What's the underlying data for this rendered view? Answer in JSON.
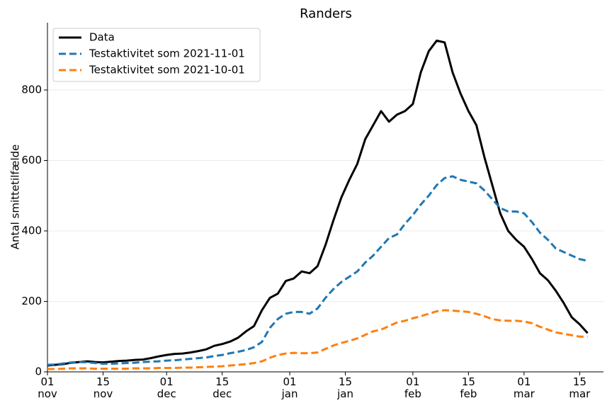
{
  "chart_data": {
    "type": "line",
    "title": "Randers",
    "y_label": "Antal smittetilfælde",
    "x": [
      0,
      2,
      4,
      6,
      8,
      10,
      12,
      14,
      16,
      18,
      20,
      22,
      24,
      26,
      28,
      30,
      32,
      34,
      36,
      38,
      40,
      42,
      44,
      46,
      48,
      50,
      52,
      54,
      56,
      58,
      60,
      62,
      64,
      66,
      68,
      70,
      72,
      74,
      76,
      78,
      80,
      82,
      84,
      86,
      88,
      90,
      92,
      94,
      96,
      98,
      100,
      102,
      104,
      106,
      108,
      110,
      112,
      114,
      116,
      118,
      120,
      122,
      124,
      126,
      128,
      130,
      132,
      134,
      136
    ],
    "series": [
      {
        "name": "Data",
        "color": "#000000",
        "linestyle": "solid",
        "values": [
          18,
          20,
          22,
          26,
          28,
          30,
          28,
          27,
          29,
          31,
          32,
          34,
          35,
          39,
          44,
          48,
          51,
          52,
          55,
          59,
          64,
          74,
          79,
          86,
          97,
          115,
          130,
          175,
          210,
          222,
          258,
          265,
          285,
          280,
          300,
          360,
          430,
          495,
          545,
          590,
          660,
          700,
          740,
          710,
          730,
          740,
          760,
          850,
          910,
          940,
          935,
          850,
          790,
          740,
          700,
          610,
          530,
          450,
          400,
          375,
          355,
          320,
          280,
          260,
          230,
          195,
          155,
          135,
          110
        ]
      },
      {
        "name": "Testaktivitet som 2021-11-01",
        "color": "#1f77b4",
        "linestyle": "dashed",
        "values": [
          20,
          21,
          24,
          27,
          28,
          27,
          25,
          23,
          23,
          24,
          25,
          26,
          28,
          29,
          30,
          32,
          33,
          35,
          37,
          39,
          41,
          45,
          48,
          53,
          57,
          62,
          70,
          85,
          125,
          150,
          165,
          170,
          170,
          165,
          180,
          210,
          235,
          255,
          270,
          285,
          310,
          330,
          355,
          380,
          390,
          420,
          445,
          475,
          500,
          530,
          550,
          555,
          545,
          540,
          535,
          515,
          490,
          465,
          455,
          455,
          450,
          425,
          395,
          375,
          350,
          340,
          330,
          320,
          315
        ]
      },
      {
        "name": "Testaktivitet som 2021-10-01",
        "color": "#ff7f0e",
        "linestyle": "dashed",
        "values": [
          8,
          8,
          9,
          10,
          10,
          10,
          9,
          9,
          9,
          9,
          9,
          10,
          10,
          10,
          11,
          11,
          11,
          12,
          12,
          13,
          14,
          15,
          16,
          18,
          20,
          22,
          25,
          30,
          40,
          48,
          52,
          54,
          53,
          53,
          55,
          65,
          75,
          82,
          88,
          95,
          105,
          115,
          120,
          130,
          140,
          145,
          152,
          158,
          165,
          172,
          175,
          174,
          172,
          170,
          165,
          158,
          150,
          146,
          145,
          145,
          143,
          138,
          128,
          120,
          112,
          108,
          104,
          100,
          100
        ]
      }
    ],
    "xlim": [
      0,
      140
    ],
    "xticks": [
      {
        "value": 0,
        "label": "01\nnov"
      },
      {
        "value": 14,
        "label": "15\nnov"
      },
      {
        "value": 30,
        "label": "01\ndec"
      },
      {
        "value": 44,
        "label": "15\ndec"
      },
      {
        "value": 61,
        "label": "01\njan"
      },
      {
        "value": 75,
        "label": "15\njan"
      },
      {
        "value": 92,
        "label": "01\nfeb"
      },
      {
        "value": 106,
        "label": "15\nfeb"
      },
      {
        "value": 120,
        "label": "01\nmar"
      },
      {
        "value": 134,
        "label": "15\nmar"
      }
    ],
    "ylim": [
      0,
      991
    ],
    "yticks": [
      0,
      200,
      400,
      600,
      800
    ],
    "grid": true,
    "legend": "upper-left"
  }
}
